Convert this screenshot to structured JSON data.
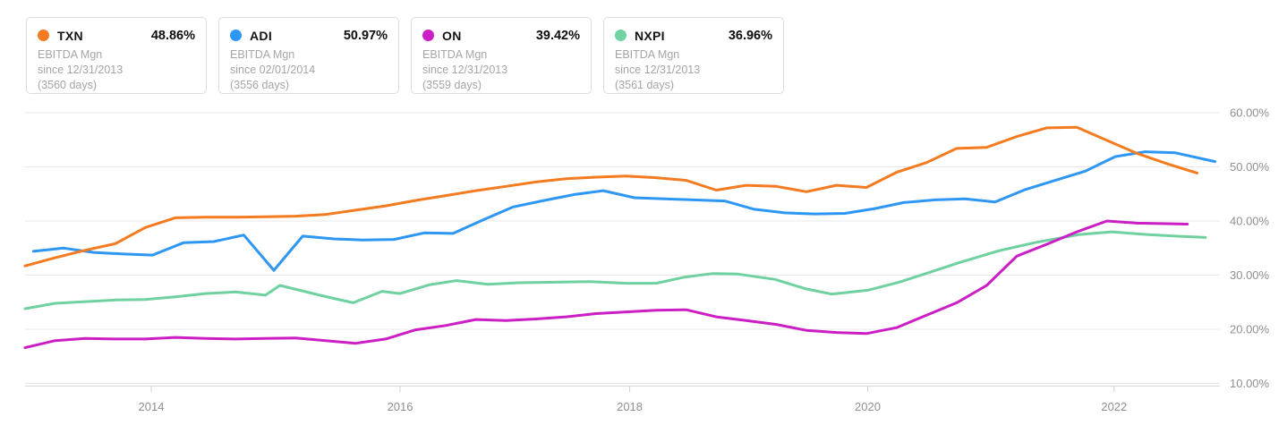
{
  "legend_cards": [
    {
      "ticker": "TXN",
      "value": "48.86%",
      "metric": "EBITDA Mgn",
      "since": "since 12/31/2013",
      "days": "(3560 days)",
      "color": "#f47b20"
    },
    {
      "ticker": "ADI",
      "value": "50.97%",
      "metric": "EBITDA Mgn",
      "since": "since 02/01/2014",
      "days": "(3556 days)",
      "color": "#2e96f3"
    },
    {
      "ticker": "ON",
      "value": "39.42%",
      "metric": "EBITDA Mgn",
      "since": "since 12/31/2013",
      "days": "(3559 days)",
      "color": "#cb1ec4"
    },
    {
      "ticker": "NXPI",
      "value": "36.96%",
      "metric": "EBITDA Mgn",
      "since": "since 12/31/2013",
      "days": "(3561 days)",
      "color": "#72d3a2"
    }
  ],
  "chart_data": {
    "type": "line",
    "ylabel": "EBITDA Margin",
    "grid": true,
    "legend_position": "top-left",
    "x_axis": {
      "domain": [
        2013.94,
        2023.88
      ],
      "ticks": [
        {
          "label": "2014",
          "pos": 2014.99
        },
        {
          "label": "2016",
          "pos": 2017.06
        },
        {
          "label": "2018",
          "pos": 2018.97
        },
        {
          "label": "2020",
          "pos": 2020.95
        },
        {
          "label": "2022",
          "pos": 2023.0
        }
      ]
    },
    "y_axis": {
      "side": "right",
      "domain": [
        10,
        60
      ],
      "ticks": [
        {
          "label": "60.00%",
          "value": 60
        },
        {
          "label": "50.00%",
          "value": 50
        },
        {
          "label": "40.00%",
          "value": 40
        },
        {
          "label": "30.00%",
          "value": 30
        },
        {
          "label": "20.00%",
          "value": 20
        },
        {
          "label": "10.00%",
          "value": 10
        }
      ]
    },
    "series": [
      {
        "name": "TXN",
        "color": "#f47b20",
        "z": 3,
        "points": [
          [
            2013.94,
            31.7
          ],
          [
            2014.19,
            33.2
          ],
          [
            2014.44,
            34.6
          ],
          [
            2014.69,
            35.8
          ],
          [
            2014.94,
            38.8
          ],
          [
            2015.19,
            40.6
          ],
          [
            2015.44,
            40.7
          ],
          [
            2015.69,
            40.7
          ],
          [
            2015.94,
            40.8
          ],
          [
            2016.19,
            40.9
          ],
          [
            2016.44,
            41.2
          ],
          [
            2016.69,
            42.0
          ],
          [
            2016.94,
            42.8
          ],
          [
            2017.19,
            43.8
          ],
          [
            2017.44,
            44.7
          ],
          [
            2017.69,
            45.6
          ],
          [
            2017.94,
            46.4
          ],
          [
            2018.19,
            47.2
          ],
          [
            2018.44,
            47.8
          ],
          [
            2018.69,
            48.1
          ],
          [
            2018.94,
            48.3
          ],
          [
            2019.19,
            48.0
          ],
          [
            2019.44,
            47.5
          ],
          [
            2019.69,
            45.7
          ],
          [
            2019.94,
            46.6
          ],
          [
            2020.19,
            46.4
          ],
          [
            2020.44,
            45.4
          ],
          [
            2020.69,
            46.6
          ],
          [
            2020.94,
            46.2
          ],
          [
            2021.19,
            49.0
          ],
          [
            2021.44,
            50.8
          ],
          [
            2021.69,
            53.4
          ],
          [
            2021.94,
            53.6
          ],
          [
            2022.19,
            55.6
          ],
          [
            2022.44,
            57.2
          ],
          [
            2022.69,
            57.3
          ],
          [
            2022.94,
            54.9
          ],
          [
            2023.19,
            52.5
          ],
          [
            2023.44,
            50.6
          ],
          [
            2023.69,
            48.86
          ]
        ]
      },
      {
        "name": "ADI",
        "color": "#2e96f3",
        "z": 2,
        "points": [
          [
            2014.01,
            34.4
          ],
          [
            2014.26,
            35.0
          ],
          [
            2014.51,
            34.2
          ],
          [
            2014.76,
            33.9
          ],
          [
            2015.0,
            33.7
          ],
          [
            2015.26,
            36.0
          ],
          [
            2015.51,
            36.2
          ],
          [
            2015.76,
            37.4
          ],
          [
            2016.01,
            30.9
          ],
          [
            2016.25,
            37.2
          ],
          [
            2016.51,
            36.7
          ],
          [
            2016.75,
            36.5
          ],
          [
            2017.01,
            36.6
          ],
          [
            2017.26,
            37.8
          ],
          [
            2017.5,
            37.7
          ],
          [
            2017.76,
            40.3
          ],
          [
            2018.0,
            42.6
          ],
          [
            2018.26,
            43.8
          ],
          [
            2018.51,
            44.9
          ],
          [
            2018.75,
            45.6
          ],
          [
            2019.01,
            44.3
          ],
          [
            2019.26,
            44.1
          ],
          [
            2019.5,
            43.9
          ],
          [
            2019.76,
            43.7
          ],
          [
            2020.0,
            42.2
          ],
          [
            2020.26,
            41.5
          ],
          [
            2020.51,
            41.3
          ],
          [
            2020.76,
            41.4
          ],
          [
            2021.01,
            42.3
          ],
          [
            2021.25,
            43.4
          ],
          [
            2021.51,
            43.9
          ],
          [
            2021.76,
            44.1
          ],
          [
            2022.01,
            43.5
          ],
          [
            2022.26,
            45.8
          ],
          [
            2022.51,
            47.5
          ],
          [
            2022.76,
            49.2
          ],
          [
            2023.01,
            51.9
          ],
          [
            2023.26,
            52.8
          ],
          [
            2023.51,
            52.6
          ],
          [
            2023.84,
            50.97
          ]
        ]
      },
      {
        "name": "ON",
        "color": "#cb1ec4",
        "z": 4,
        "points": [
          [
            2013.94,
            16.6
          ],
          [
            2014.19,
            17.9
          ],
          [
            2014.44,
            18.3
          ],
          [
            2014.69,
            18.2
          ],
          [
            2014.94,
            18.2
          ],
          [
            2015.19,
            18.5
          ],
          [
            2015.44,
            18.3
          ],
          [
            2015.69,
            18.2
          ],
          [
            2015.94,
            18.3
          ],
          [
            2016.19,
            18.4
          ],
          [
            2016.44,
            17.9
          ],
          [
            2016.69,
            17.4
          ],
          [
            2016.94,
            18.2
          ],
          [
            2017.19,
            19.9
          ],
          [
            2017.44,
            20.7
          ],
          [
            2017.69,
            21.8
          ],
          [
            2017.94,
            21.6
          ],
          [
            2018.19,
            21.9
          ],
          [
            2018.44,
            22.3
          ],
          [
            2018.69,
            22.9
          ],
          [
            2018.94,
            23.2
          ],
          [
            2019.19,
            23.5
          ],
          [
            2019.44,
            23.6
          ],
          [
            2019.69,
            22.3
          ],
          [
            2019.94,
            21.6
          ],
          [
            2020.19,
            20.9
          ],
          [
            2020.44,
            19.8
          ],
          [
            2020.69,
            19.4
          ],
          [
            2020.94,
            19.2
          ],
          [
            2021.19,
            20.3
          ],
          [
            2021.44,
            22.6
          ],
          [
            2021.69,
            24.9
          ],
          [
            2021.94,
            28.1
          ],
          [
            2022.19,
            33.5
          ],
          [
            2022.44,
            35.7
          ],
          [
            2022.69,
            38.0
          ],
          [
            2022.94,
            40.0
          ],
          [
            2023.19,
            39.6
          ],
          [
            2023.44,
            39.5
          ],
          [
            2023.61,
            39.42
          ]
        ]
      },
      {
        "name": "NXPI",
        "color": "#70d1a0",
        "z": 1,
        "points": [
          [
            2013.94,
            23.8
          ],
          [
            2014.19,
            24.8
          ],
          [
            2014.44,
            25.1
          ],
          [
            2014.69,
            25.4
          ],
          [
            2014.94,
            25.5
          ],
          [
            2015.19,
            26.0
          ],
          [
            2015.44,
            26.6
          ],
          [
            2015.69,
            26.9
          ],
          [
            2015.94,
            26.3
          ],
          [
            2016.06,
            28.1
          ],
          [
            2016.41,
            26.2
          ],
          [
            2016.67,
            24.9
          ],
          [
            2016.91,
            27.0
          ],
          [
            2017.06,
            26.6
          ],
          [
            2017.3,
            28.2
          ],
          [
            2017.53,
            29.0
          ],
          [
            2017.79,
            28.3
          ],
          [
            2018.05,
            28.6
          ],
          [
            2018.35,
            28.7
          ],
          [
            2018.64,
            28.8
          ],
          [
            2018.94,
            28.5
          ],
          [
            2019.19,
            28.5
          ],
          [
            2019.42,
            29.6
          ],
          [
            2019.66,
            30.3
          ],
          [
            2019.87,
            30.2
          ],
          [
            2020.18,
            29.2
          ],
          [
            2020.43,
            27.5
          ],
          [
            2020.65,
            26.5
          ],
          [
            2020.95,
            27.2
          ],
          [
            2021.21,
            28.7
          ],
          [
            2021.45,
            30.4
          ],
          [
            2021.71,
            32.3
          ],
          [
            2022.04,
            34.5
          ],
          [
            2022.34,
            36.0
          ],
          [
            2022.71,
            37.5
          ],
          [
            2022.98,
            38.0
          ],
          [
            2023.27,
            37.5
          ],
          [
            2023.51,
            37.2
          ],
          [
            2023.76,
            36.96
          ]
        ]
      }
    ]
  }
}
